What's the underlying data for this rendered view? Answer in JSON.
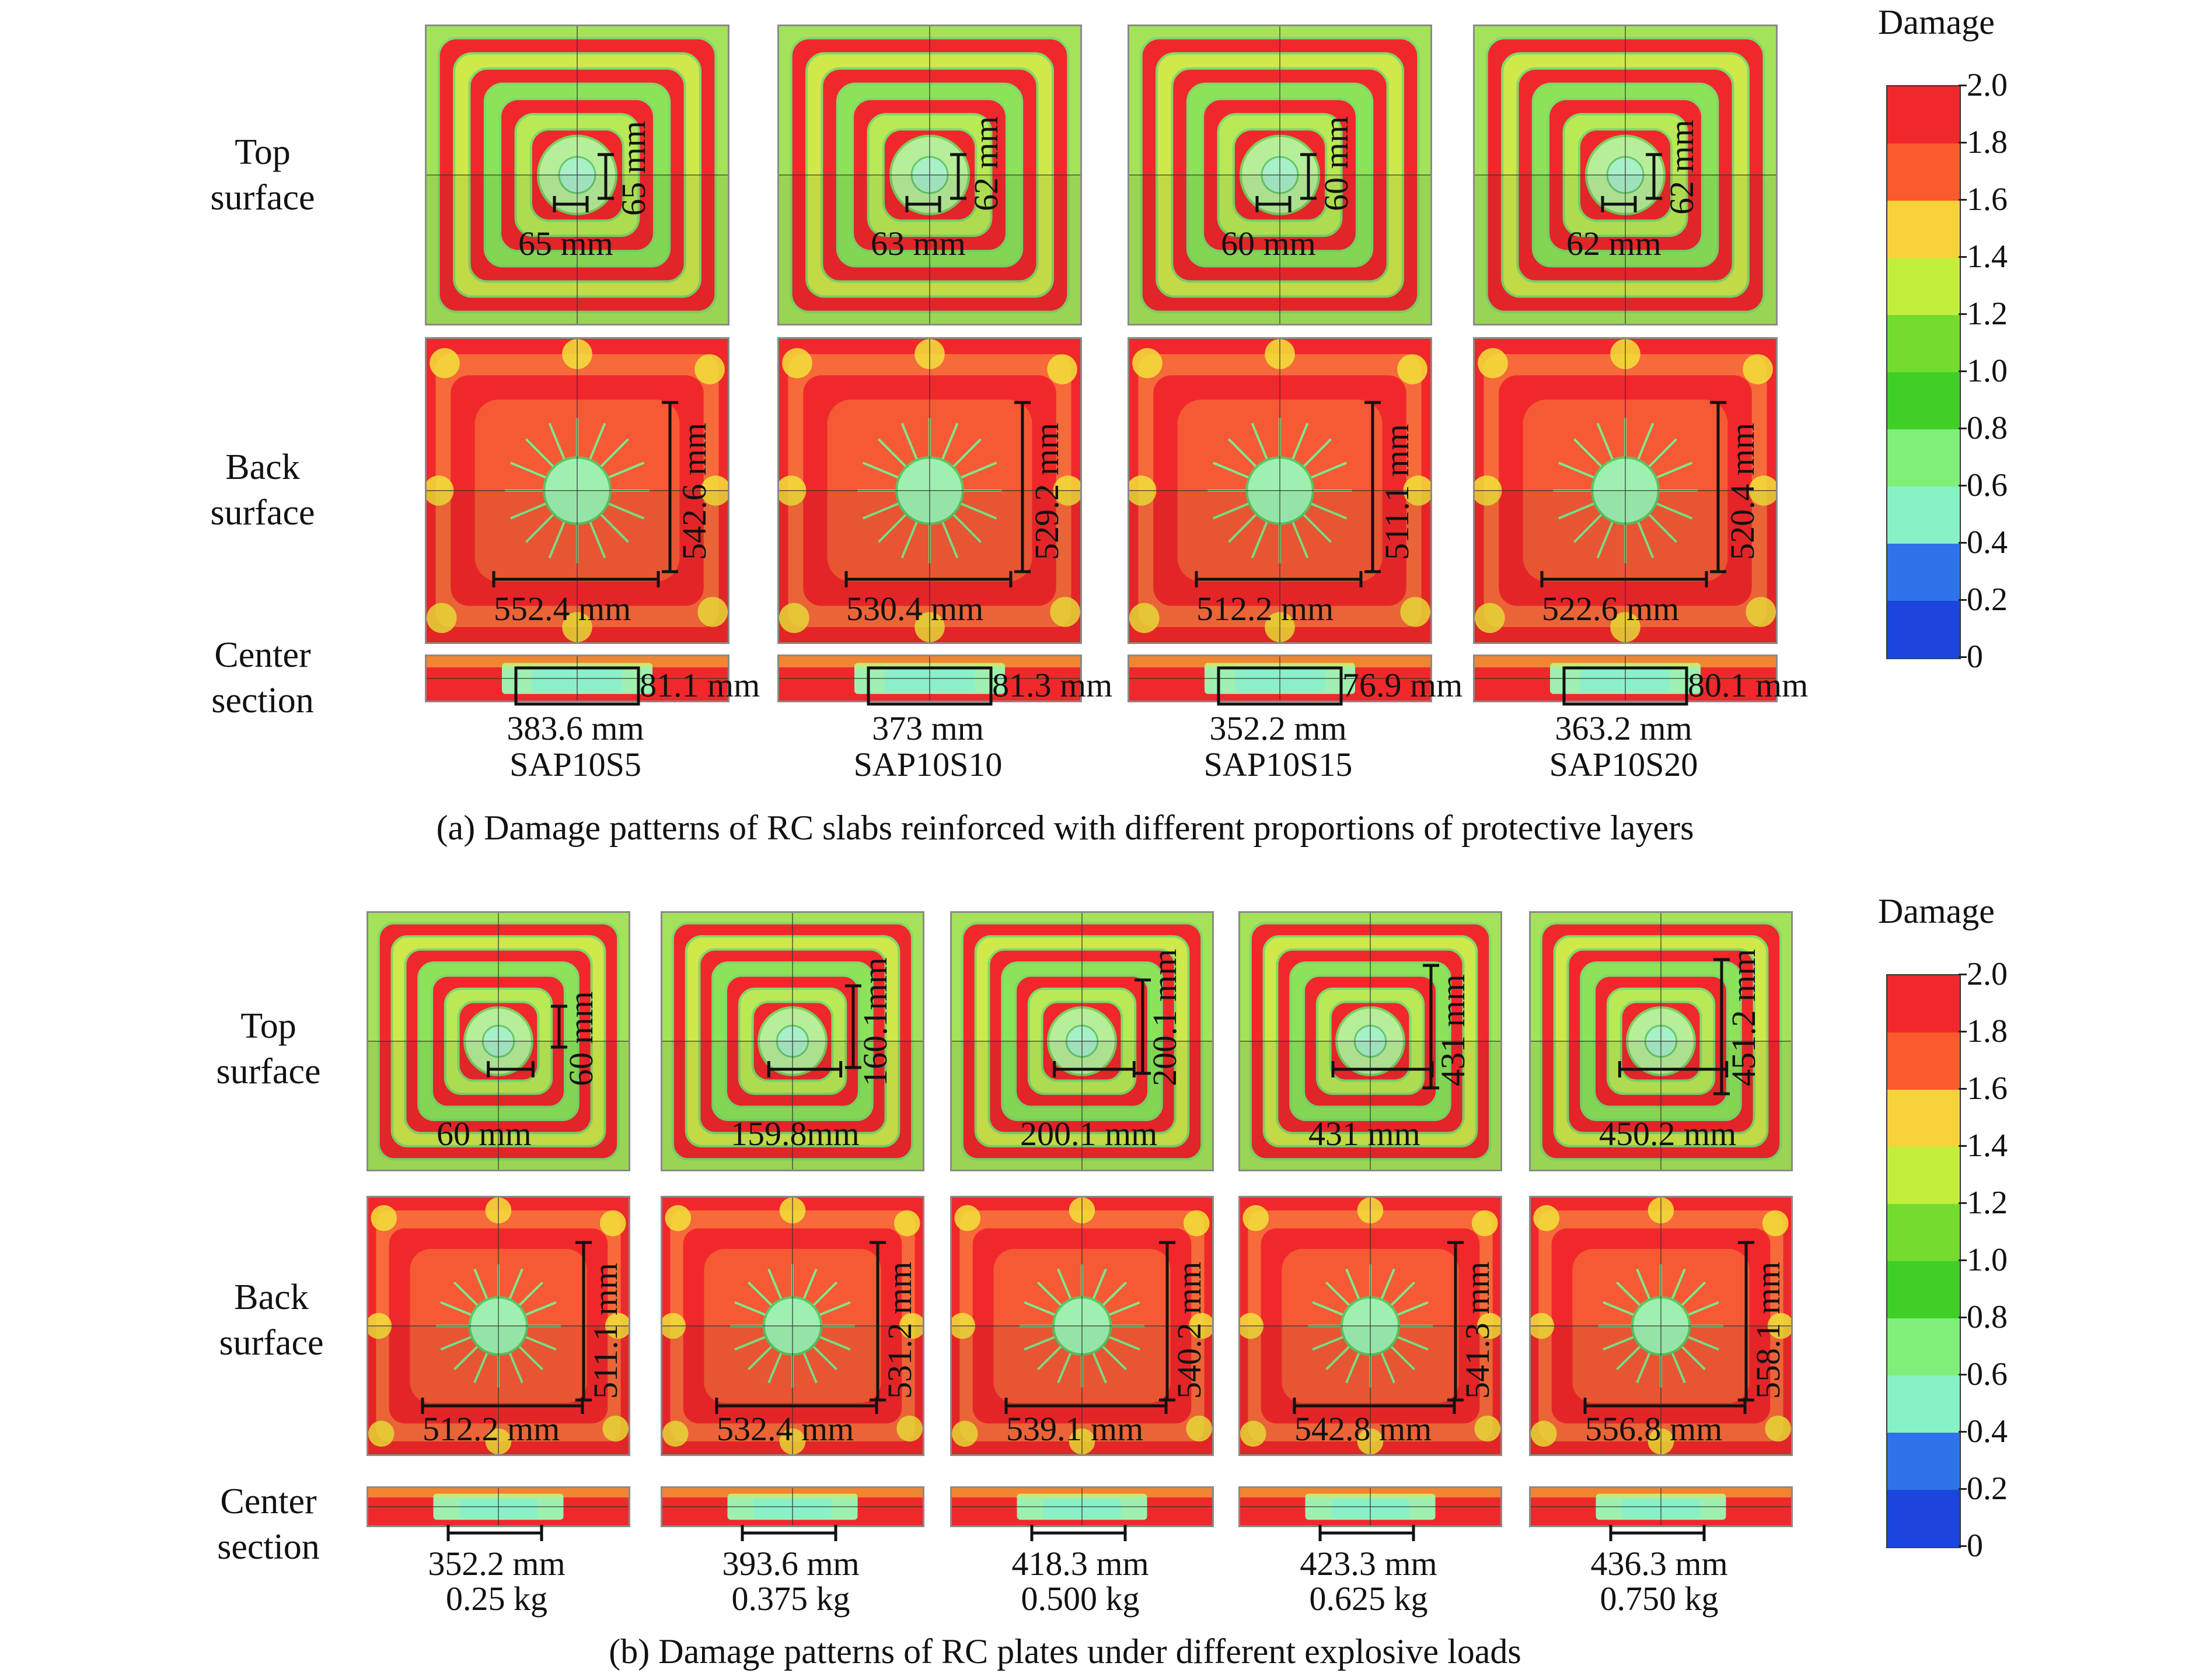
{
  "figure_a": {
    "row_labels": {
      "top": "Top\nsurface",
      "back": "Back\nsurface",
      "center": "Center\nsection"
    },
    "caption": "(a) Damage patterns of RC slabs reinforced with different proportions of protective layers",
    "cases": [
      {
        "name": "SAP10S5",
        "top_v": "65 mm",
        "top_h": "65 mm",
        "back_v": "542.6 mm",
        "back_h": "552.4 mm",
        "center_v": "81.1 mm",
        "center_h": "383.6 mm"
      },
      {
        "name": "SAP10S10",
        "top_v": "62 mm",
        "top_h": "63 mm",
        "back_v": "529.2 mm",
        "back_h": "530.4 mm",
        "center_v": "81.3 mm",
        "center_h": "373 mm"
      },
      {
        "name": "SAP10S15",
        "top_v": "60 mm",
        "top_h": "60 mm",
        "back_v": "511.1 mm",
        "back_h": "512.2 mm",
        "center_v": "76.9 mm",
        "center_h": "352.2 mm"
      },
      {
        "name": "SAP10S20",
        "top_v": "62 mm",
        "top_h": "62 mm",
        "back_v": "520.4 mm",
        "back_h": "522.6 mm",
        "center_v": "80.1 mm",
        "center_h": "363.2 mm"
      }
    ]
  },
  "figure_b": {
    "row_labels": {
      "top": "Top\nsurface",
      "back": "Back\nsurface",
      "center": "Center\nsection"
    },
    "caption": "(b) Damage patterns of RC plates under different explosive loads",
    "cases": [
      {
        "name": "0.25 kg",
        "top_v": "60 mm",
        "top_h": "60 mm",
        "back_v": "511.1 mm",
        "back_h": "512.2 mm",
        "center_h": "352.2 mm"
      },
      {
        "name": "0.375 kg",
        "top_v": "160.1mm",
        "top_h": "159.8mm",
        "back_v": "531.2 mm",
        "back_h": "532.4 mm",
        "center_h": "393.6 mm"
      },
      {
        "name": "0.500 kg",
        "top_v": "200.1 mm",
        "top_h": "200.1 mm",
        "back_v": "540.2 mm",
        "back_h": "539.1 mm",
        "center_h": "418.3 mm"
      },
      {
        "name": "0.625 kg",
        "top_v": "431 mm",
        "top_h": "431 mm",
        "back_v": "541.3 mm",
        "back_h": "542.8 mm",
        "center_h": "423.3 mm"
      },
      {
        "name": "0.750 kg",
        "top_v": "451.2 mm",
        "top_h": "450.2 mm",
        "back_v": "558.1 mm",
        "back_h": "556.8 mm",
        "center_h": "436.3 mm"
      }
    ]
  },
  "colorbar": {
    "title": "Damage",
    "ticks": [
      "2.0",
      "1.8",
      "1.6",
      "1.4",
      "1.2",
      "1.0",
      "0.8",
      "0.6",
      "0.4",
      "0.2",
      "0"
    ],
    "colors": [
      "#f0282b",
      "#fb5a2c",
      "#f8d23a",
      "#c4ee3c",
      "#74dc2e",
      "#3fcf27",
      "#7fef7a",
      "#86f2c6",
      "#2f73ea",
      "#1b45dd"
    ]
  }
}
